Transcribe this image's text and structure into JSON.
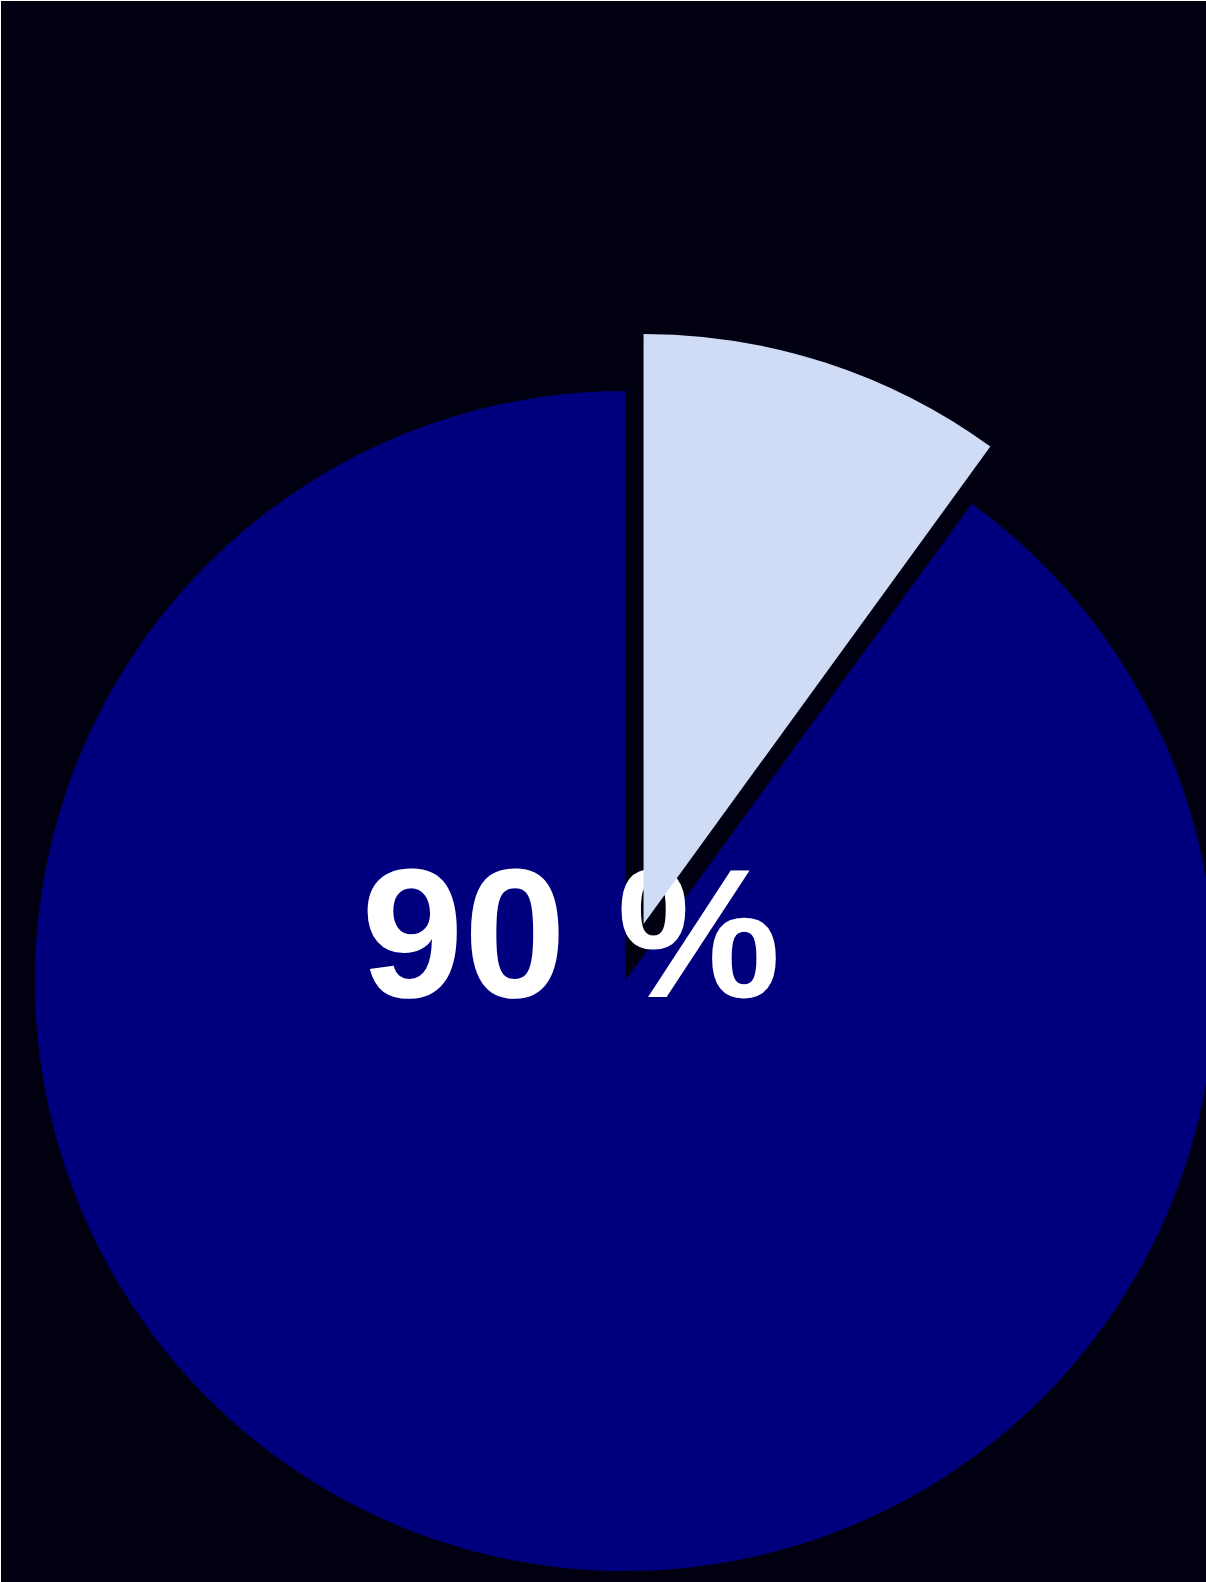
{
  "chart_data": {
    "type": "pie",
    "categories": [
      null,
      null
    ],
    "values": [
      90,
      10
    ],
    "colors": [
      "#00007f",
      "#d0dcf5"
    ],
    "value_labels": [
      "90 %",
      null
    ]
  }
}
